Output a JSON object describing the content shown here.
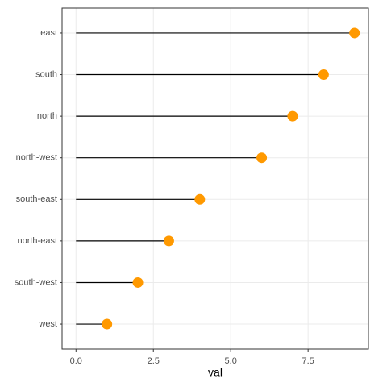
{
  "chart_data": {
    "type": "lollipop",
    "x_label": "val",
    "categories": [
      "east",
      "south",
      "north",
      "north-west",
      "south-east",
      "north-east",
      "south-west",
      "west"
    ],
    "values": [
      9,
      8,
      7,
      6,
      4,
      3,
      2,
      1
    ],
    "color": "#ff9900",
    "stem_color": "#000000",
    "xlim": [
      -0.45,
      9.45
    ],
    "xticks": [
      {
        "value": 0,
        "label": "0.0"
      },
      2.5,
      {
        "value": 5,
        "label": "5.0"
      },
      7.5
    ],
    "grid": true
  }
}
